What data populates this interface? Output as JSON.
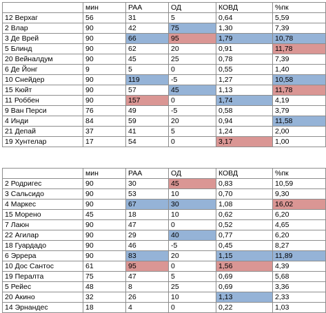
{
  "tables": [
    {
      "headers": [
        "",
        "мин",
        "PAA",
        "ОД",
        "КОВД",
        "%пк"
      ],
      "rows": [
        {
          "cells": [
            "12 Верхаг",
            "56",
            "31",
            "5",
            "0,64",
            "5,59"
          ],
          "hl": [
            "",
            "",
            "",
            "",
            "",
            ""
          ]
        },
        {
          "cells": [
            "2 Влар",
            "90",
            "42",
            "75",
            "1,30",
            "7,39"
          ],
          "hl": [
            "",
            "",
            "",
            "blue",
            "",
            ""
          ]
        },
        {
          "cells": [
            "3 Де Врей",
            "90",
            "66",
            "95",
            "1,79",
            "10,78"
          ],
          "hl": [
            "",
            "",
            "blue",
            "red",
            "blue",
            "blue"
          ]
        },
        {
          "cells": [
            "5 Блинд",
            "90",
            "62",
            "20",
            "0,91",
            "11,78"
          ],
          "hl": [
            "",
            "",
            "",
            "",
            "",
            "red"
          ]
        },
        {
          "cells": [
            "20 Вейналдум",
            "90",
            "45",
            "25",
            "0,78",
            "7,39"
          ],
          "hl": [
            "",
            "",
            "",
            "",
            "",
            ""
          ]
        },
        {
          "cells": [
            "6 Де Йонг",
            "9",
            "5",
            "0",
            "0,55",
            "1,40"
          ],
          "hl": [
            "",
            "",
            "",
            "",
            "",
            ""
          ]
        },
        {
          "cells": [
            "10 Снейдер",
            "90",
            "119",
            "-5",
            "1,27",
            "10,58"
          ],
          "hl": [
            "",
            "",
            "blue",
            "",
            "",
            "blue"
          ]
        },
        {
          "cells": [
            "15 Кюйт",
            "90",
            "57",
            "45",
            "1,13",
            "11,78"
          ],
          "hl": [
            "",
            "",
            "",
            "blue",
            "",
            "red"
          ]
        },
        {
          "cells": [
            "11 Роббен",
            "90",
            "157",
            "0",
            "1,74",
            "4,19"
          ],
          "hl": [
            "",
            "",
            "red",
            "",
            "blue",
            ""
          ]
        },
        {
          "cells": [
            "9 Ван Перси",
            "76",
            "49",
            "-5",
            "0,58",
            "3,79"
          ],
          "hl": [
            "",
            "",
            "",
            "",
            "",
            ""
          ]
        },
        {
          "cells": [
            "4 Инди",
            "84",
            "59",
            "20",
            "0,94",
            "11,58"
          ],
          "hl": [
            "",
            "",
            "",
            "",
            "",
            "blue"
          ]
        },
        {
          "cells": [
            "21 Депай",
            "37",
            "41",
            "5",
            "1,24",
            "2,00"
          ],
          "hl": [
            "",
            "",
            "",
            "",
            "",
            ""
          ]
        },
        {
          "cells": [
            "19 Хунтелар",
            "17",
            "54",
            "0",
            "3,17",
            "1,00"
          ],
          "hl": [
            "",
            "",
            "",
            "",
            "red",
            ""
          ]
        }
      ]
    },
    {
      "headers": [
        "",
        "мин",
        "PAA",
        "ОД",
        "КОВД",
        "%пк"
      ],
      "rows": [
        {
          "cells": [
            "2 Родригес",
            "90",
            "30",
            "45",
            "0,83",
            "10,59"
          ],
          "hl": [
            "",
            "",
            "",
            "red",
            "",
            ""
          ]
        },
        {
          "cells": [
            "3 Сальсидо",
            "90",
            "53",
            "10",
            "0,70",
            "9,30"
          ],
          "hl": [
            "",
            "",
            "",
            "",
            "",
            ""
          ]
        },
        {
          "cells": [
            "4 Маркес",
            "90",
            "67",
            "30",
            "1,08",
            "16,02"
          ],
          "hl": [
            "",
            "",
            "blue",
            "blue",
            "",
            "red"
          ]
        },
        {
          "cells": [
            "15 Морено",
            "45",
            "18",
            "10",
            "0,62",
            "6,20"
          ],
          "hl": [
            "",
            "",
            "",
            "",
            "",
            ""
          ]
        },
        {
          "cells": [
            "7 Лаюн",
            "90",
            "47",
            "0",
            "0,52",
            "4,65"
          ],
          "hl": [
            "",
            "",
            "",
            "",
            "",
            ""
          ]
        },
        {
          "cells": [
            "22 Агилар",
            "90",
            "29",
            "40",
            "0,77",
            "6,20"
          ],
          "hl": [
            "",
            "",
            "",
            "blue",
            "",
            ""
          ]
        },
        {
          "cells": [
            "18 Гуардадо",
            "90",
            "46",
            "-5",
            "0,45",
            "8,27"
          ],
          "hl": [
            "",
            "",
            "",
            "",
            "",
            ""
          ]
        },
        {
          "cells": [
            "6 Эррера",
            "90",
            "83",
            "20",
            "1,15",
            "11,89"
          ],
          "hl": [
            "",
            "",
            "blue",
            "",
            "blue",
            "blue"
          ]
        },
        {
          "cells": [
            "10 Дос Сантос",
            "61",
            "95",
            "0",
            "1,56",
            "4,39"
          ],
          "hl": [
            "",
            "",
            "red",
            "",
            "red",
            ""
          ]
        },
        {
          "cells": [
            "19 Пералта",
            "75",
            "47",
            "5",
            "0,69",
            "5,68"
          ],
          "hl": [
            "",
            "",
            "",
            "",
            "",
            ""
          ]
        },
        {
          "cells": [
            "5 Рейес",
            "48",
            "8",
            "25",
            "0,69",
            "3,36"
          ],
          "hl": [
            "",
            "",
            "",
            "",
            "",
            ""
          ]
        },
        {
          "cells": [
            "20 Акино",
            "32",
            "26",
            "10",
            "1,13",
            "2,33"
          ],
          "hl": [
            "",
            "",
            "",
            "",
            "blue",
            ""
          ]
        },
        {
          "cells": [
            "14 Эрнандес",
            "18",
            "4",
            "0",
            "0,22",
            "1,03"
          ],
          "hl": [
            "",
            "",
            "",
            "",
            "",
            ""
          ]
        }
      ]
    }
  ]
}
